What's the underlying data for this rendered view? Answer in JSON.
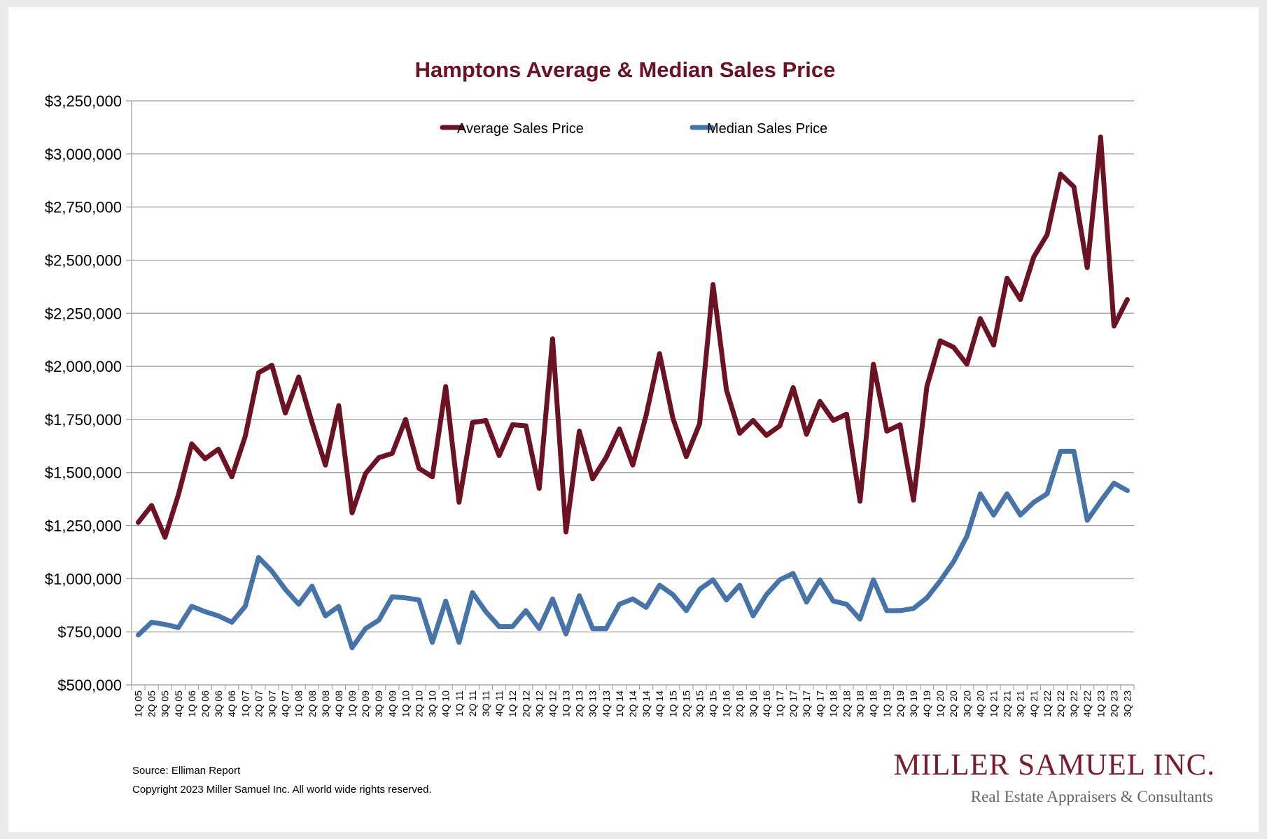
{
  "chart_data": {
    "type": "line",
    "title": "Hamptons Average & Median Sales Price",
    "ylim": [
      500000,
      3250000
    ],
    "yticks": [
      "$500,000",
      "$750,000",
      "$1,000,000",
      "$1,250,000",
      "$1,500,000",
      "$1,750,000",
      "$2,000,000",
      "$2,250,000",
      "$2,500,000",
      "$2,750,000",
      "$3,000,000",
      "$3,250,000"
    ],
    "ytick_values": [
      500000,
      750000,
      1000000,
      1250000,
      1500000,
      1750000,
      2000000,
      2250000,
      2500000,
      2750000,
      3000000,
      3250000
    ],
    "grid": true,
    "legend_position": "top-center",
    "categories": [
      "1Q 05",
      "2Q 05",
      "3Q 05",
      "4Q 05",
      "1Q 06",
      "2Q 06",
      "3Q 06",
      "4Q 06",
      "1Q 07",
      "2Q 07",
      "3Q 07",
      "4Q 07",
      "1Q 08",
      "2Q 08",
      "3Q 08",
      "4Q 08",
      "1Q 09",
      "2Q 09",
      "3Q 09",
      "4Q 09",
      "1Q 10",
      "2Q 10",
      "3Q 10",
      "4Q 10",
      "1Q 11",
      "2Q 11",
      "3Q 11",
      "4Q 11",
      "1Q 12",
      "2Q 12",
      "3Q 12",
      "4Q 12",
      "1Q 13",
      "2Q 13",
      "3Q 13",
      "4Q 13",
      "1Q 14",
      "2Q 14",
      "3Q 14",
      "4Q 14",
      "1Q 15",
      "2Q 15",
      "3Q 15",
      "4Q 15",
      "1Q 16",
      "2Q 16",
      "3Q 16",
      "4Q 16",
      "1Q 17",
      "2Q 17",
      "3Q 17",
      "4Q 17",
      "1Q 18",
      "2Q 18",
      "3Q 18",
      "4Q 18",
      "1Q 19",
      "2Q 19",
      "3Q 19",
      "4Q 19",
      "1Q 20",
      "2Q 20",
      "3Q 20",
      "4Q 20",
      "1Q 21",
      "2Q 21",
      "3Q 21",
      "4Q 21",
      "1Q 22",
      "2Q 22",
      "3Q 22",
      "4Q 22",
      "1Q 23",
      "2Q 23",
      "3Q 23"
    ],
    "series": [
      {
        "name": "Average Sales Price",
        "color": "#6b1223",
        "values": [
          1265000,
          1345000,
          1195000,
          1395000,
          1635000,
          1565000,
          1610000,
          1480000,
          1670000,
          1970000,
          2005000,
          1780000,
          1950000,
          1735000,
          1535000,
          1815000,
          1310000,
          1495000,
          1570000,
          1590000,
          1750000,
          1520000,
          1480000,
          1905000,
          1360000,
          1735000,
          1745000,
          1580000,
          1725000,
          1720000,
          1425000,
          2130000,
          1220000,
          1695000,
          1470000,
          1570000,
          1705000,
          1535000,
          1770000,
          2060000,
          1755000,
          1575000,
          1730000,
          2385000,
          1890000,
          1685000,
          1745000,
          1675000,
          1720000,
          1900000,
          1680000,
          1835000,
          1745000,
          1775000,
          1365000,
          2010000,
          1695000,
          1725000,
          1370000,
          1905000,
          2120000,
          2090000,
          2010000,
          2225000,
          2100000,
          2415000,
          2315000,
          2515000,
          2620000,
          2905000,
          2845000,
          2465000,
          3080000,
          2190000,
          2315000
        ]
      },
      {
        "name": "Median Sales Price",
        "color": "#4674a8",
        "values": [
          735000,
          795000,
          785000,
          770000,
          870000,
          845000,
          825000,
          795000,
          870000,
          1100000,
          1035000,
          950000,
          880000,
          965000,
          825000,
          870000,
          675000,
          765000,
          805000,
          915000,
          910000,
          900000,
          700000,
          895000,
          700000,
          935000,
          845000,
          775000,
          775000,
          850000,
          765000,
          905000,
          740000,
          920000,
          765000,
          765000,
          880000,
          905000,
          865000,
          970000,
          925000,
          850000,
          950000,
          995000,
          900000,
          970000,
          825000,
          925000,
          995000,
          1025000,
          890000,
          995000,
          895000,
          880000,
          810000,
          995000,
          850000,
          850000,
          860000,
          910000,
          990000,
          1080000,
          1200000,
          1400000,
          1300000,
          1400000,
          1300000,
          1360000,
          1400000,
          1600000,
          1600000,
          1275000,
          1365000,
          1450000,
          1415000
        ]
      }
    ]
  },
  "footer": {
    "source": "Source: Elliman Report",
    "copyright": "Copyright 2023 Miller Samuel Inc.  All world wide rights reserved."
  },
  "logo": {
    "name": "Miller Samuel Inc.",
    "tagline": "Real Estate Appraisers & Consultants"
  }
}
